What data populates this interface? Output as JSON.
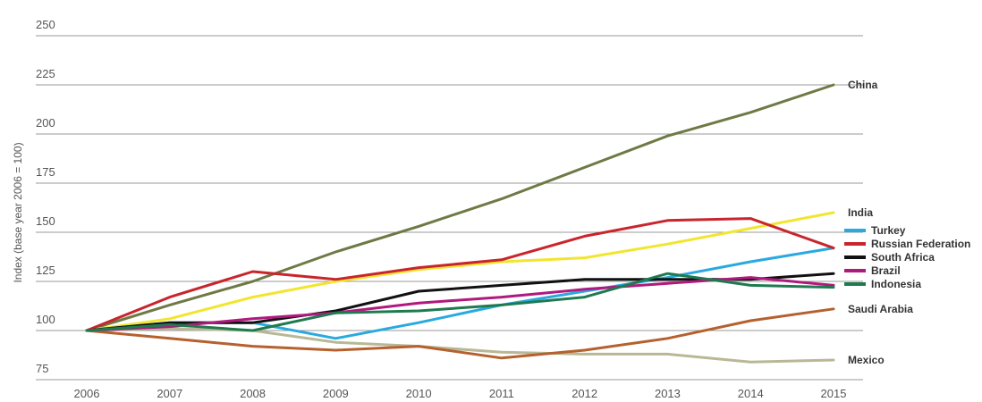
{
  "chart_data": {
    "type": "line",
    "ylabel": "Index (base year 2006 = 100)",
    "xlabel": "",
    "categories": [
      "2006",
      "2007",
      "2008",
      "2009",
      "2010",
      "2011",
      "2012",
      "2013",
      "2014",
      "2015"
    ],
    "ylim": [
      75,
      250
    ],
    "yticks": [
      75,
      100,
      125,
      150,
      175,
      200,
      225,
      250
    ],
    "grid": true,
    "legend_placement": "right",
    "legend": [
      "Turkey",
      "Russian Federation",
      "South Africa",
      "Brazil",
      "Indonesia"
    ],
    "series": [
      {
        "name": "China",
        "color": "#6e7a45",
        "label_at_end": true,
        "values": [
          100,
          113,
          125,
          140,
          153,
          167,
          183,
          199,
          211,
          225
        ]
      },
      {
        "name": "India",
        "color": "#f2e52e",
        "label_at_end": true,
        "values": [
          100,
          106,
          117,
          125,
          131,
          135,
          137,
          144,
          152,
          160
        ]
      },
      {
        "name": "Mexico",
        "color": "#b8b896",
        "label_at_end": true,
        "values": [
          100,
          101,
          100,
          94,
          92,
          89,
          88,
          88,
          84,
          85
        ]
      },
      {
        "name": "Saudi Arabia",
        "color": "#b5612f",
        "label_at_end": true,
        "values": [
          100,
          96,
          92,
          90,
          92,
          86,
          90,
          96,
          105,
          111
        ]
      },
      {
        "name": "Turkey",
        "color": "#29a9e0",
        "label_at_end": false,
        "values": [
          100,
          104,
          104,
          96,
          104,
          113,
          120,
          127,
          135,
          142
        ]
      },
      {
        "name": "Russian Federation",
        "color": "#c8252c",
        "label_at_end": false,
        "values": [
          100,
          117,
          130,
          126,
          132,
          136,
          148,
          156,
          157,
          142
        ]
      },
      {
        "name": "South Africa",
        "color": "#111111",
        "label_at_end": false,
        "values": [
          100,
          104,
          104,
          110,
          120,
          123,
          126,
          126,
          126,
          129
        ]
      },
      {
        "name": "Brazil",
        "color": "#b0197e",
        "label_at_end": false,
        "values": [
          100,
          102,
          106,
          109,
          114,
          117,
          121,
          124,
          127,
          123
        ]
      },
      {
        "name": "Indonesia",
        "color": "#1f7a50",
        "label_at_end": false,
        "values": [
          100,
          103,
          100,
          109,
          110,
          113,
          117,
          129,
          123,
          122
        ]
      }
    ]
  }
}
